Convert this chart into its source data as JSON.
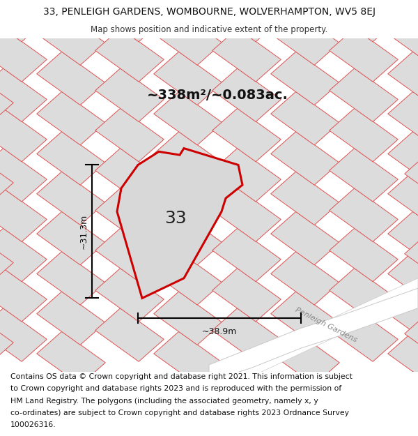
{
  "title_line1": "33, PENLEIGH GARDENS, WOMBOURNE, WOLVERHAMPTON, WV5 8EJ",
  "title_line2": "Map shows position and indicative extent of the property.",
  "area_label": "~338m²/~0.083ac.",
  "width_label": "~38.9m",
  "height_label": "~31.3m",
  "property_number": "33",
  "footer_lines": [
    "Contains OS data © Crown copyright and database right 2021. This information is subject",
    "to Crown copyright and database rights 2023 and is reproduced with the permission of",
    "HM Land Registry. The polygons (including the associated geometry, namely x, y",
    "co-ordinates) are subject to Crown copyright and database rights 2023 Ordnance Survey",
    "100026316."
  ],
  "bg_color": "#f0f0f0",
  "plot_fill": "#dcdcdc",
  "plot_edge_red": "#e05050",
  "plot_edge_gray": "#c0c0c0",
  "property_edge": "#cc0000",
  "property_fill": "#d8d8d8",
  "road_fill": "#ffffff",
  "street_label": "Penleigh Gardens",
  "title_fontsize": 10,
  "subtitle_fontsize": 8.5,
  "area_fontsize": 14,
  "dim_fontsize": 9,
  "property_num_fontsize": 18,
  "footer_fontsize": 7.8,
  "street_fontsize": 8
}
